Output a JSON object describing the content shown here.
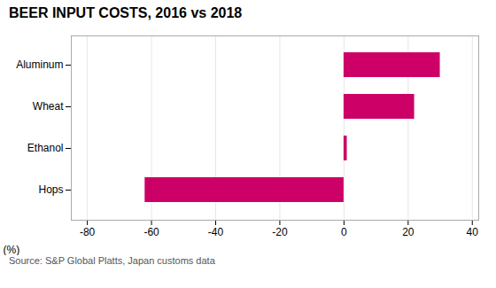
{
  "chart_data": {
    "type": "bar",
    "orientation": "horizontal",
    "title": "BEER INPUT COSTS, 2016 vs 2018",
    "xlabel": "(%)",
    "categories": [
      "Aluminum",
      "Wheat",
      "Ethanol",
      "Hops"
    ],
    "values": [
      30,
      22,
      1,
      -62
    ],
    "color": "#cc0066",
    "xlim": [
      -85,
      42
    ],
    "xticks": [
      -80,
      -60,
      -40,
      -20,
      0,
      20,
      40
    ],
    "grid": true,
    "caption": "Source: S&P Global Platts, Japan customs data"
  }
}
